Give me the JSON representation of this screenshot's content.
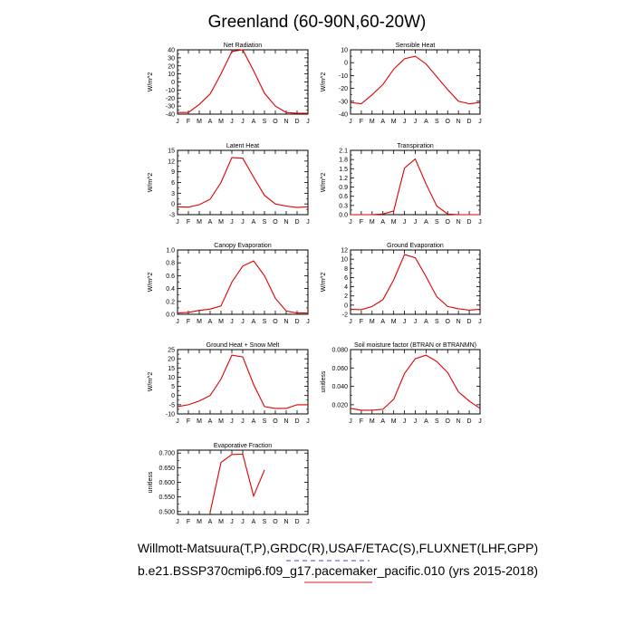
{
  "figure": {
    "title": "Greenland (60-90N,60-20W)",
    "caption_line1": "Willmott-Matsuura(T,P),GRDC(R),USAF/ETAC(S),FLUXNET(LHF,GPP)",
    "caption_line2": "b.e21.BSSP370cmip6.f09_g17.pacemaker_pacific.010 (yrs 2015-2018)",
    "line_color": "#dd0000",
    "underline_blue": "#4444cc",
    "underline_red": "#cc2222"
  },
  "chart_data": [
    {
      "type": "line",
      "title": "Net Radiation",
      "ylabel": "W/m^2",
      "categories": [
        "J",
        "F",
        "M",
        "A",
        "M",
        "J",
        "J",
        "A",
        "S",
        "O",
        "N",
        "D",
        "J"
      ],
      "ylim": [
        -40,
        40
      ],
      "yticks": [
        "40",
        "30",
        "20",
        "10",
        "0",
        "-10",
        "-20",
        "-30",
        "-40"
      ],
      "values": [
        -38,
        -38,
        -28,
        -15,
        10,
        38,
        40,
        14,
        -14,
        -30,
        -38,
        -39,
        -39
      ]
    },
    {
      "type": "line",
      "title": "Sensible Heat",
      "ylabel": "W/m^2",
      "categories": [
        "J",
        "F",
        "M",
        "A",
        "M",
        "J",
        "J",
        "A",
        "S",
        "O",
        "N",
        "D",
        "J"
      ],
      "ylim": [
        -40,
        10
      ],
      "yticks": [
        "10",
        "0",
        "-10",
        "-20",
        "-30",
        "-40"
      ],
      "values": [
        -31,
        -32,
        -25,
        -17,
        -5,
        3,
        5,
        -1,
        -11,
        -21,
        -30,
        -32,
        -31
      ]
    },
    {
      "type": "line",
      "title": "Latent Heat",
      "ylabel": "W/m^2",
      "categories": [
        "J",
        "F",
        "M",
        "A",
        "M",
        "J",
        "J",
        "A",
        "S",
        "O",
        "N",
        "D",
        "J"
      ],
      "ylim": [
        -3,
        15
      ],
      "yticks": [
        "15",
        "12",
        "9",
        "6",
        "3",
        "0",
        "-3"
      ],
      "values": [
        -0.8,
        -0.9,
        -0.2,
        1.3,
        6,
        13,
        12.8,
        7.5,
        2.4,
        0,
        -0.6,
        -1,
        -0.8
      ]
    },
    {
      "type": "line",
      "title": "Transpiration",
      "ylabel": "W/m^2",
      "categories": [
        "J",
        "F",
        "M",
        "A",
        "M",
        "J",
        "J",
        "A",
        "S",
        "O",
        "N",
        "D",
        "J"
      ],
      "ylim": [
        0,
        2.1
      ],
      "yticks": [
        "2.1",
        "1.8",
        "1.5",
        "1.2",
        "0.9",
        "0.6",
        "0.3",
        "0.0"
      ],
      "values": [
        0,
        0,
        0,
        0.02,
        0.12,
        1.52,
        1.82,
        1.0,
        0.28,
        0.02,
        0,
        0,
        0
      ]
    },
    {
      "type": "line",
      "title": "Canopy Evaporation",
      "ylabel": "W/m^2",
      "categories": [
        "J",
        "F",
        "M",
        "A",
        "M",
        "J",
        "J",
        "A",
        "S",
        "O",
        "N",
        "D",
        "J"
      ],
      "ylim": [
        0,
        1.0
      ],
      "yticks": [
        "1.0",
        "0.8",
        "0.6",
        "0.4",
        "0.2",
        "0.0"
      ],
      "values": [
        0.02,
        0.03,
        0.06,
        0.08,
        0.13,
        0.5,
        0.75,
        0.83,
        0.6,
        0.25,
        0.05,
        0.02,
        0.02
      ]
    },
    {
      "type": "line",
      "title": "Ground Evaporation",
      "ylabel": "W/m^2",
      "categories": [
        "J",
        "F",
        "M",
        "A",
        "M",
        "J",
        "J",
        "A",
        "S",
        "O",
        "N",
        "D",
        "J"
      ],
      "ylim": [
        -2,
        12
      ],
      "yticks": [
        "12",
        "10",
        "8",
        "6",
        "4",
        "2",
        "0",
        "-2"
      ],
      "values": [
        -0.9,
        -1.0,
        -0.3,
        1.2,
        5.5,
        11,
        10.3,
        6.2,
        1.8,
        -0.3,
        -0.8,
        -1.1,
        -0.9
      ]
    },
    {
      "type": "line",
      "title": "Ground Heat + Snow Melt",
      "ylabel": "W/m^2",
      "categories": [
        "J",
        "F",
        "M",
        "A",
        "M",
        "J",
        "J",
        "A",
        "S",
        "O",
        "N",
        "D",
        "J"
      ],
      "ylim": [
        -10,
        25
      ],
      "yticks": [
        "25",
        "20",
        "15",
        "10",
        "5",
        "0",
        "-5",
        "-10"
      ],
      "values": [
        -6,
        -5,
        -3,
        0,
        9,
        22,
        21,
        6,
        -6,
        -7,
        -7,
        -5,
        -5
      ]
    },
    {
      "type": "line",
      "title": "Soil moisture factor (BTRAN or BTRANMN)",
      "ylabel": "unitless",
      "categories": [
        "J",
        "F",
        "M",
        "A",
        "M",
        "J",
        "J",
        "A",
        "S",
        "O",
        "N",
        "D",
        "J"
      ],
      "ylim": [
        0.01,
        0.08
      ],
      "yticks": [
        "0.080",
        "0.060",
        "0.040",
        "0.020"
      ],
      "yticks_values": [
        0.08,
        0.06,
        0.04,
        0.02
      ],
      "values": [
        0.016,
        0.014,
        0.014,
        0.015,
        0.026,
        0.054,
        0.07,
        0.074,
        0.067,
        0.055,
        0.034,
        0.024,
        0.016
      ]
    },
    {
      "type": "line",
      "title": "Evaporative Fraction",
      "ylabel": "unitless",
      "categories": [
        "J",
        "F",
        "M",
        "A",
        "M",
        "J",
        "J",
        "A",
        "S",
        "O",
        "N",
        "D",
        "J"
      ],
      "ylim": [
        0.49,
        0.71
      ],
      "yticks": [
        "0.700",
        "0.650",
        "0.600",
        "0.550",
        "0.500"
      ],
      "yticks_values": [
        0.7,
        0.65,
        0.6,
        0.55,
        0.5
      ],
      "values": [
        null,
        null,
        null,
        0.497,
        0.668,
        0.695,
        0.696,
        0.553,
        0.642,
        null,
        null,
        null,
        null
      ]
    }
  ]
}
